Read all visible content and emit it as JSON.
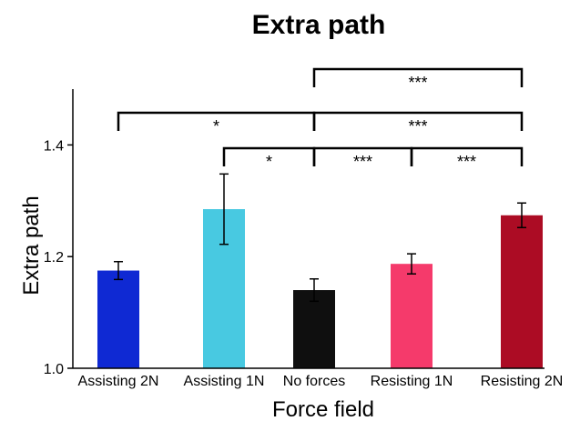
{
  "chart_data": {
    "type": "bar",
    "title": "Extra path",
    "xlabel": "Force field",
    "ylabel": "Extra path",
    "ylim": [
      1.0,
      1.5
    ],
    "yticks": [
      "1.0",
      "1.2",
      "1.4"
    ],
    "grid": false,
    "categories": [
      "Assisting 2N",
      "Assisting 1N",
      "No forces",
      "Resisting 1N",
      "Resisting 2N"
    ],
    "values": [
      1.175,
      1.285,
      1.14,
      1.187,
      1.274
    ],
    "errors": [
      0.016,
      0.063,
      0.02,
      0.018,
      0.022
    ],
    "colors": [
      "#0f29d3",
      "#48c9e1",
      "#0f0f0f",
      "#f53a6b",
      "#ac0c24"
    ],
    "significance": [
      {
        "from": 2,
        "to": 4,
        "label": "***",
        "level": 3
      },
      {
        "from": 0,
        "to": 2,
        "label": "*",
        "level": 2
      },
      {
        "from": 2,
        "to": 4,
        "label": "***",
        "level": 2
      },
      {
        "from": 1,
        "to": 2,
        "label": "*",
        "level": 1
      },
      {
        "from": 2,
        "to": 3,
        "label": "***",
        "level": 1
      },
      {
        "from": 3,
        "to": 4,
        "label": "***",
        "level": 1
      }
    ]
  }
}
